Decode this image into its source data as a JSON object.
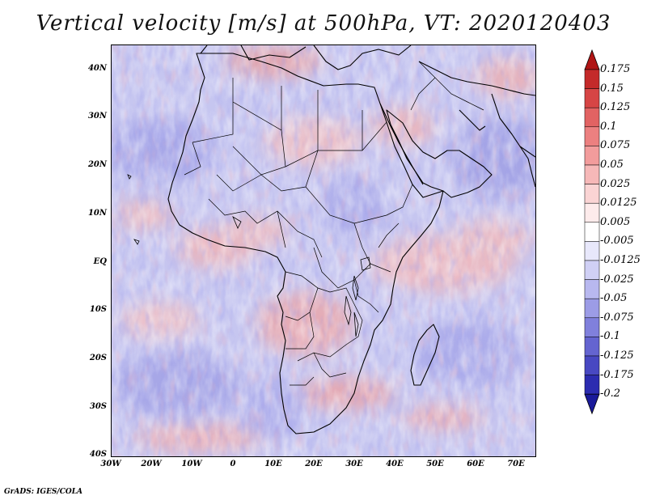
{
  "title": "Vertical velocity [m/s] at 500hPa, VT: 2020120403",
  "footer": "GrADS: IGES/COLA",
  "map": {
    "lat_labels": [
      "40N",
      "30N",
      "20N",
      "10N",
      "EQ",
      "10S",
      "20S",
      "30S",
      "40S"
    ],
    "lon_labels": [
      "30W",
      "20W",
      "10W",
      "0",
      "10E",
      "20E",
      "30E",
      "40E",
      "50E",
      "60E",
      "70E"
    ],
    "colors": {
      "ocean_base": "#c9c9f2",
      "land_base": "#d6d2ee",
      "coast": "#000000"
    }
  },
  "colorbar": {
    "labels": [
      "0.175",
      "0.15",
      "0.125",
      "0.1",
      "0.075",
      "0.05",
      "0.025",
      "0.0125",
      "0.005",
      "-0.005",
      "-0.0125",
      "-0.025",
      "-0.05",
      "-0.075",
      "-0.1",
      "-0.125",
      "-0.175",
      "-0.2"
    ],
    "colors": [
      "#b01515",
      "#c42a2a",
      "#d64545",
      "#e26363",
      "#ec8080",
      "#f29c9c",
      "#f6b8b8",
      "#fad4d4",
      "#fdebeb",
      "#ffffff",
      "#e8e8fb",
      "#d0d0f5",
      "#b8b8ef",
      "#9c9ce6",
      "#8080dc",
      "#6464d0",
      "#4848c2",
      "#2c2cb0",
      "#1a1a9a"
    ]
  }
}
